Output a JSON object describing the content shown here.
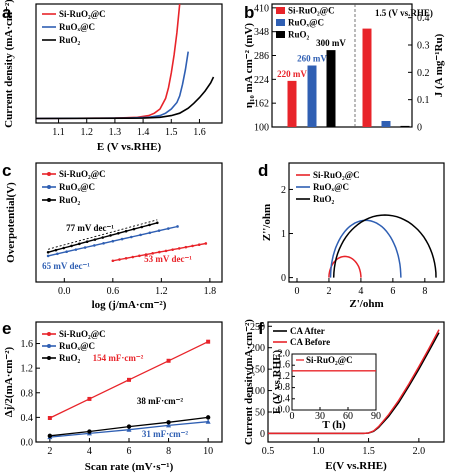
{
  "colors": {
    "red": "#e8242a",
    "blue": "#2f5fb3",
    "black": "#000000"
  },
  "chart_data": [
    {
      "panel": "a",
      "type": "line",
      "xlabel": "E (V vs.RHE)",
      "ylabel": "Current density (mA·cm⁻²)",
      "xlim": [
        1.02,
        1.68
      ],
      "ylim": [
        -5,
        140
      ],
      "xticks": [
        "1.1",
        "1.2",
        "1.3",
        "1.4",
        "1.5",
        "1.6"
      ],
      "legend": [
        "Si-RuO₂@C",
        "RuOₓ@C",
        "RuO₂"
      ],
      "series": [
        {
          "name": "Si-RuO₂@C",
          "color": "#e8242a",
          "x": [
            1.02,
            1.3,
            1.38,
            1.42,
            1.44,
            1.46,
            1.48,
            1.49,
            1.5,
            1.51,
            1.52,
            1.53
          ],
          "y": [
            0.5,
            1,
            2,
            4,
            7,
            12,
            25,
            38,
            56,
            78,
            105,
            140
          ]
        },
        {
          "name": "RuOₓ@C",
          "color": "#2f5fb3",
          "x": [
            1.02,
            1.35,
            1.42,
            1.46,
            1.48,
            1.5,
            1.52,
            1.53,
            1.54,
            1.55,
            1.56
          ],
          "y": [
            0.5,
            1,
            2,
            4,
            7,
            12,
            20,
            28,
            42,
            60,
            82
          ]
        },
        {
          "name": "RuO₂",
          "color": "#000000",
          "x": [
            1.02,
            1.4,
            1.46,
            1.5,
            1.53,
            1.56,
            1.58,
            1.6,
            1.62,
            1.64,
            1.65
          ],
          "y": [
            0.5,
            1,
            2,
            4,
            7,
            13,
            19,
            26,
            34,
            44,
            51
          ]
        }
      ]
    },
    {
      "panel": "b",
      "type": "bar",
      "ylabel": "η₁₀ mA cm⁻² (mV)",
      "y2label": "J (A mg⁻¹Ru)",
      "ylim": [
        100,
        420
      ],
      "yticks": [
        "100",
        "162",
        "224",
        "286",
        "348",
        "410"
      ],
      "y2lim": [
        0,
        0.45
      ],
      "y2ticks": [
        "0",
        "0.1",
        "0.2",
        "0.3",
        "0.4"
      ],
      "annotation": "1.5 (V vs.RHE)",
      "legend": [
        "Si-RuO₂@C",
        "RuOₓ@C",
        "RuO₂"
      ],
      "overpotential": [
        {
          "name": "Si-RuO₂@C",
          "value": 220,
          "label": "220 mV",
          "color": "#e8242a"
        },
        {
          "name": "RuOₓ@C",
          "value": 260,
          "label": "260 mV",
          "color": "#2f5fb3"
        },
        {
          "name": "RuO₂",
          "value": 300,
          "label": "300 mV",
          "color": "#000000"
        }
      ],
      "mass_activity": [
        {
          "name": "Si-RuO₂@C",
          "value": 0.36,
          "color": "#e8242a"
        },
        {
          "name": "RuOₓ@C",
          "value": 0.022,
          "color": "#2f5fb3"
        },
        {
          "name": "RuO₂",
          "value": 0.004,
          "color": "#000000"
        }
      ]
    },
    {
      "panel": "c",
      "type": "scatter",
      "xlabel": "log (j/mA·cm⁻²)",
      "ylabel": "Overpotential(V)",
      "xlim": [
        -0.35,
        1.95
      ],
      "ylim": [
        0.1,
        0.52
      ],
      "xticks": [
        "0.0",
        "0.6",
        "1.2",
        "1.8"
      ],
      "legend": [
        "Si-RuO₂@C",
        "RuOₓ@C",
        "RuO₂"
      ],
      "series": [
        {
          "name": "Si-RuO₂@C",
          "color": "#e8242a",
          "label": "53 mV dec⁻¹",
          "x": [
            0.6,
            1.75
          ],
          "y": [
            0.175,
            0.236
          ]
        },
        {
          "name": "RuOₓ@C",
          "color": "#2f5fb3",
          "label": "65 mV dec⁻¹",
          "x": [
            -0.2,
            1.4
          ],
          "y": [
            0.192,
            0.296
          ]
        },
        {
          "name": "RuO₂",
          "color": "#000000",
          "label": "77 mV dec⁻¹",
          "x": [
            -0.2,
            1.15
          ],
          "y": [
            0.205,
            0.309
          ]
        }
      ]
    },
    {
      "panel": "d",
      "type": "line",
      "xlabel": "Z'/ohm",
      "ylabel": "Z''/ohm",
      "xlim": [
        -0.5,
        9.2
      ],
      "ylim": [
        -0.1,
        2.6
      ],
      "xticks": [
        "0",
        "2",
        "4",
        "6",
        "8"
      ],
      "yticks": [
        "0",
        "1",
        "2"
      ],
      "legend": [
        "Si-RuO₂@C",
        "RuOₓ@C",
        "RuO₂"
      ],
      "series": [
        {
          "name": "Si-RuO₂@C",
          "color": "#e8242a",
          "rs": 2.0,
          "rct": 2.0,
          "peak": 0.48
        },
        {
          "name": "RuOₓ@C",
          "color": "#2f5fb3",
          "rs": 2.1,
          "rct": 4.4,
          "peak": 1.3
        },
        {
          "name": "RuO₂",
          "color": "#000000",
          "rs": 2.3,
          "rct": 6.4,
          "peak": 1.42
        }
      ]
    },
    {
      "panel": "e",
      "type": "scatter",
      "xlabel": "Scan rate (mV·s⁻¹)",
      "ylabel": "Δj/2(mA·cm⁻²)",
      "xlim": [
        1.3,
        10.7
      ],
      "ylim": [
        0,
        1.95
      ],
      "xticks": [
        "2",
        "4",
        "6",
        "8",
        "10"
      ],
      "yticks": [
        "0.0",
        "0.4",
        "0.8",
        "1.2",
        "1.6"
      ],
      "legend": [
        "Si-RuO₂@C",
        "RuOₓ@C",
        "RuO₂"
      ],
      "series": [
        {
          "name": "Si-RuO₂@C",
          "color": "#e8242a",
          "label": "154 mF·cm⁻²",
          "x": [
            2,
            4,
            6,
            8,
            10
          ],
          "y": [
            0.39,
            0.7,
            1.01,
            1.32,
            1.63
          ]
        },
        {
          "name": "RuOₓ@C",
          "color": "#2f5fb3",
          "label": "31 mF·cm⁻²",
          "x": [
            2,
            4,
            6,
            8,
            10
          ],
          "y": [
            0.08,
            0.14,
            0.2,
            0.27,
            0.33
          ]
        },
        {
          "name": "RuO₂",
          "color": "#000000",
          "label": "38 mF·cm⁻²",
          "x": [
            2,
            4,
            6,
            8,
            10
          ],
          "y": [
            0.1,
            0.17,
            0.25,
            0.32,
            0.4
          ]
        }
      ]
    },
    {
      "panel": "f",
      "type": "line",
      "xlabel": "E(V vs.RHE)",
      "ylabel": "Current density(mA·cm⁻²)",
      "xlim": [
        0.5,
        2.25
      ],
      "ylim": [
        -20,
        260
      ],
      "xticks": [
        "0.5",
        "1.0",
        "1.5",
        "2.0"
      ],
      "yticks": [
        "0",
        "50",
        "100",
        "150",
        "200",
        "250"
      ],
      "legend": [
        "CA After",
        "CA Before"
      ],
      "series": [
        {
          "name": "CA After",
          "color": "#000000",
          "x": [
            0.5,
            1.45,
            1.5,
            1.55,
            1.6,
            1.7,
            1.8,
            1.9,
            2.0,
            2.1,
            2.2
          ],
          "y": [
            0,
            0,
            1,
            5,
            14,
            40,
            72,
            110,
            150,
            192,
            235
          ]
        },
        {
          "name": "CA Before",
          "color": "#e8242a",
          "x": [
            0.5,
            1.45,
            1.5,
            1.55,
            1.6,
            1.7,
            1.8,
            1.9,
            2.0,
            2.1,
            2.2
          ],
          "y": [
            0,
            0,
            1,
            6,
            16,
            44,
            77,
            115,
            156,
            198,
            242
          ]
        }
      ],
      "inset": {
        "ylabel": "E (V vs.RHE)",
        "xlabel": "T (h)",
        "legend": "Si-RuO₂@C",
        "xlim": [
          0,
          90
        ],
        "ylim": [
          0,
          2.0
        ],
        "xticks": [
          "0",
          "30",
          "60",
          "90"
        ],
        "yticks": [
          "0.0",
          "0.4",
          "0.8",
          "1.2",
          "1.6",
          "2.0"
        ],
        "value": 1.4
      }
    }
  ]
}
